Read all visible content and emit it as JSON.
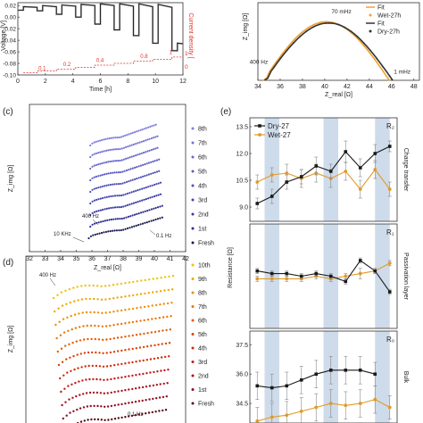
{
  "chart_data": [
    {
      "panel": "a",
      "type": "line",
      "xlabel": "Time [h]",
      "ylabel": "Voltage [V]",
      "ylabel_right": "Current density [",
      "xticks": [
        0,
        2,
        4,
        6,
        8,
        10,
        12
      ],
      "yticks": [
        "0.02",
        "0.00",
        "-0.02",
        "-0.04",
        "-0.06",
        "-0.08",
        "-0.10"
      ],
      "yticks_right": [
        "1",
        "0"
      ],
      "xlim": [
        0,
        12
      ],
      "ylim": [
        -0.1,
        0.025
      ],
      "voltage": {
        "x": [
          0,
          0.4,
          0.4,
          1.4,
          1.4,
          1.8,
          1.8,
          2.8,
          2.8,
          3.2,
          3.2,
          4.2,
          4.2,
          4.6,
          4.6,
          5.6,
          5.6,
          6.0,
          6.0,
          7.0,
          7.0,
          7.4,
          7.4,
          8.4,
          8.4,
          8.8,
          8.8,
          9.8,
          9.8,
          10.2,
          10.2,
          11.2,
          11.2,
          11.6,
          11.6,
          12.0
        ],
        "y": [
          0.012,
          0.012,
          0.018,
          0.017,
          0.011,
          0.011,
          0.02,
          0.018,
          0.005,
          0.005,
          0.021,
          0.019,
          0.0,
          0.0,
          0.022,
          0.02,
          -0.012,
          -0.012,
          0.023,
          0.02,
          -0.022,
          -0.022,
          0.023,
          0.019,
          -0.032,
          -0.032,
          0.023,
          0.018,
          -0.045,
          -0.045,
          0.022,
          0.017,
          -0.058,
          -0.058,
          -0.045,
          -0.046
        ]
      },
      "current_labels": [
        {
          "x": 1.5,
          "text": "0.1"
        },
        {
          "x": 3.3,
          "text": "0.2"
        },
        {
          "x": 5.7,
          "text": "0.4"
        },
        {
          "x": 8.9,
          "text": "0.8"
        },
        {
          "x": 11.0,
          "text": "1"
        }
      ],
      "current_steps": {
        "x": [
          0.4,
          1.4,
          1.4,
          2.8,
          2.8,
          4.2,
          4.2,
          5.6,
          5.6,
          7.0,
          7.0,
          8.4,
          8.4,
          9.8,
          9.8,
          11.2,
          11.2,
          12.0
        ],
        "y": [
          -0.096,
          -0.096,
          -0.093,
          -0.093,
          -0.09,
          -0.09,
          -0.087,
          -0.087,
          -0.083,
          -0.083,
          -0.08,
          -0.08,
          -0.076,
          -0.076,
          -0.073,
          -0.073,
          -0.069,
          -0.069
        ]
      },
      "colors": {
        "voltage": "#1a1a1a",
        "voltage_gray": "#9a9a9a",
        "current": "#e0302a"
      }
    },
    {
      "panel": "b",
      "type": "scatter",
      "xlabel": "Z",
      "xlabel_sub": "real",
      "xlabel_unit": "[Ω]",
      "ylabel": "Z",
      "ylabel_sub": "img",
      "ylabel_unit": "[Ω]",
      "xticks": [
        34,
        36,
        38,
        40,
        42,
        44,
        46,
        48
      ],
      "xlim": [
        34,
        48.5
      ],
      "ylim": [
        0,
        6.5
      ],
      "legend": [
        "Fit",
        "Wet-27h",
        "Fit",
        "Dry-27h"
      ],
      "annotations": [
        {
          "text": "400 Hz",
          "x": 34.9,
          "y": 1.4
        },
        {
          "text": "70 mHz",
          "x": 40.6,
          "y": 5.6
        },
        {
          "text": "1 mHz",
          "x": 46.2,
          "y": 0.55
        }
      ],
      "series": [
        {
          "name": "Wet-27h",
          "color": "#f0a030",
          "x0": 34.5,
          "x1": 45.8,
          "height": 4.9
        },
        {
          "name": "Dry-27h",
          "color": "#333333",
          "x0": 34.6,
          "x1": 46.1,
          "height": 4.8
        }
      ]
    },
    {
      "panel": "c",
      "type": "scatter",
      "xlabel": "Z",
      "xlabel_sub": "real",
      "xlabel_unit": "[Ω]",
      "ylabel": "Z",
      "ylabel_sub": "img",
      "ylabel_unit": "[Ω]",
      "xticks": [
        32,
        33,
        34,
        35,
        36,
        37,
        38,
        39,
        40,
        41,
        42
      ],
      "xlim": [
        32,
        42
      ],
      "legend": [
        "8th",
        "7th",
        "6th",
        "5th",
        "4th",
        "3rd",
        "2nd",
        "1st",
        "Fresh"
      ],
      "annotations": [
        {
          "text": "400 Hz"
        },
        {
          "text": "10 KHz"
        },
        {
          "text": "0.1 Hz"
        }
      ],
      "series": [
        {
          "name": "8th",
          "color": "#8080e0",
          "x0": 35.9,
          "x1": 40.1
        },
        {
          "name": "7th",
          "color": "#7474d6",
          "x0": 35.9,
          "x1": 40.2
        },
        {
          "name": "6th",
          "color": "#6868cc",
          "x0": 35.9,
          "x1": 40.2
        },
        {
          "name": "5th",
          "color": "#5c5cc2",
          "x0": 35.9,
          "x1": 40.3
        },
        {
          "name": "4th",
          "color": "#5050b8",
          "x0": 35.9,
          "x1": 40.3
        },
        {
          "name": "3rd",
          "color": "#4444ae",
          "x0": 35.9,
          "x1": 40.4
        },
        {
          "name": "2nd",
          "color": "#3838a4",
          "x0": 35.9,
          "x1": 40.4
        },
        {
          "name": "1st",
          "color": "#2c2c90",
          "x0": 35.9,
          "x1": 40.5
        },
        {
          "name": "Fresh",
          "color": "#1a1a50",
          "x0": 35.8,
          "x1": 40.5
        }
      ]
    },
    {
      "panel": "d",
      "type": "scatter",
      "xlabel": "",
      "ylabel": "Z",
      "ylabel_sub": "img",
      "ylabel_unit": "[Ω]",
      "legend": [
        "10th",
        "9th",
        "8th",
        "7th",
        "6th",
        "5th",
        "4th",
        "3rd",
        "2nd",
        "1st",
        "Fresh"
      ],
      "annotations": [
        {
          "text": "400 Hz"
        },
        {
          "text": "0.1 Hz"
        }
      ],
      "series": [
        {
          "name": "10th",
          "color": "#f2c200"
        },
        {
          "name": "9th",
          "color": "#f0a800"
        },
        {
          "name": "8th",
          "color": "#ee9000"
        },
        {
          "name": "7th",
          "color": "#ea7600"
        },
        {
          "name": "6th",
          "color": "#e45c00"
        },
        {
          "name": "5th",
          "color": "#dc4200"
        },
        {
          "name": "4th",
          "color": "#d02c08"
        },
        {
          "name": "3rd",
          "color": "#c01818"
        },
        {
          "name": "2nd",
          "color": "#a8101c"
        },
        {
          "name": "1st",
          "color": "#8c0c1c"
        },
        {
          "name": "Fresh",
          "color": "#5a0810"
        }
      ]
    },
    {
      "panel": "e",
      "type": "line",
      "ylabel": "Resistance [Ω]",
      "legend": [
        "Dry-27",
        "Wet-27"
      ],
      "shaded_bands": [
        [
          1,
          2
        ],
        [
          5,
          6
        ],
        [
          8.5,
          9.5
        ]
      ],
      "x": [
        0,
        1,
        2,
        3,
        4,
        5,
        6,
        7,
        8,
        9
      ],
      "subplots": [
        {
          "label": "R₂",
          "side_label": "Charge transfer",
          "yticks": [
            "13.5",
            "12.0",
            "10.5",
            "9.0"
          ],
          "ylim": [
            8.2,
            14.0
          ],
          "dry": [
            9.2,
            9.6,
            10.4,
            10.7,
            11.3,
            11.0,
            12.1,
            11.2,
            12.0,
            12.4
          ],
          "dry_err": [
            0.3,
            0.4,
            0.4,
            0.4,
            0.5,
            0.4,
            0.6,
            0.5,
            0.5,
            0.3
          ],
          "wet": [
            10.4,
            10.8,
            10.9,
            10.6,
            10.9,
            10.6,
            11.0,
            10.0,
            11.1,
            10.0
          ],
          "wet_err": [
            0.4,
            0.4,
            0.5,
            0.5,
            0.5,
            0.5,
            0.5,
            0.5,
            0.5,
            0.4
          ]
        },
        {
          "label": "R₁",
          "side_label": "Passivation layer",
          "ylim": [
            -1,
            3
          ],
          "dry": [
            1.2,
            1.1,
            1.1,
            1.0,
            1.1,
            1.0,
            0.8,
            1.6,
            1.2,
            0.4
          ],
          "dry_err": [
            0.1,
            0.1,
            0.1,
            0.1,
            0.1,
            0.1,
            0.1,
            0.1,
            0.1,
            0.1
          ],
          "wet": [
            0.9,
            0.9,
            0.9,
            0.9,
            1.0,
            0.9,
            1.0,
            1.1,
            1.2,
            1.5
          ],
          "wet_err": [
            0.1,
            0.1,
            0.1,
            0.1,
            0.1,
            0.1,
            0.1,
            0.2,
            0.1,
            0.1
          ]
        },
        {
          "label": "R₀",
          "side_label": "Bulk",
          "yticks": [
            "37.5",
            "36.0",
            "34.5"
          ],
          "ylim": [
            33.5,
            38.2
          ],
          "dry": [
            35.4,
            35.3,
            35.4,
            35.7,
            36.0,
            36.2,
            36.2,
            36.2,
            36.0,
            null
          ],
          "dry_err": [
            0.7,
            0.7,
            0.7,
            0.7,
            0.7,
            0.7,
            0.7,
            0.7,
            0.6,
            0
          ],
          "wet": [
            33.6,
            33.8,
            33.9,
            34.1,
            34.3,
            34.5,
            34.4,
            34.5,
            34.7,
            34.3
          ],
          "wet_err": [
            0.7,
            0.7,
            0.7,
            0.7,
            0.7,
            0.7,
            0.7,
            0.7,
            0.7,
            0.6
          ]
        }
      ],
      "colors": {
        "dry": "#1a1a1a",
        "wet": "#e09a2a",
        "band": "#c5d5e6"
      }
    }
  ],
  "panel_labels": {
    "c": "(c)",
    "d": "(d)",
    "e": "(e)"
  }
}
